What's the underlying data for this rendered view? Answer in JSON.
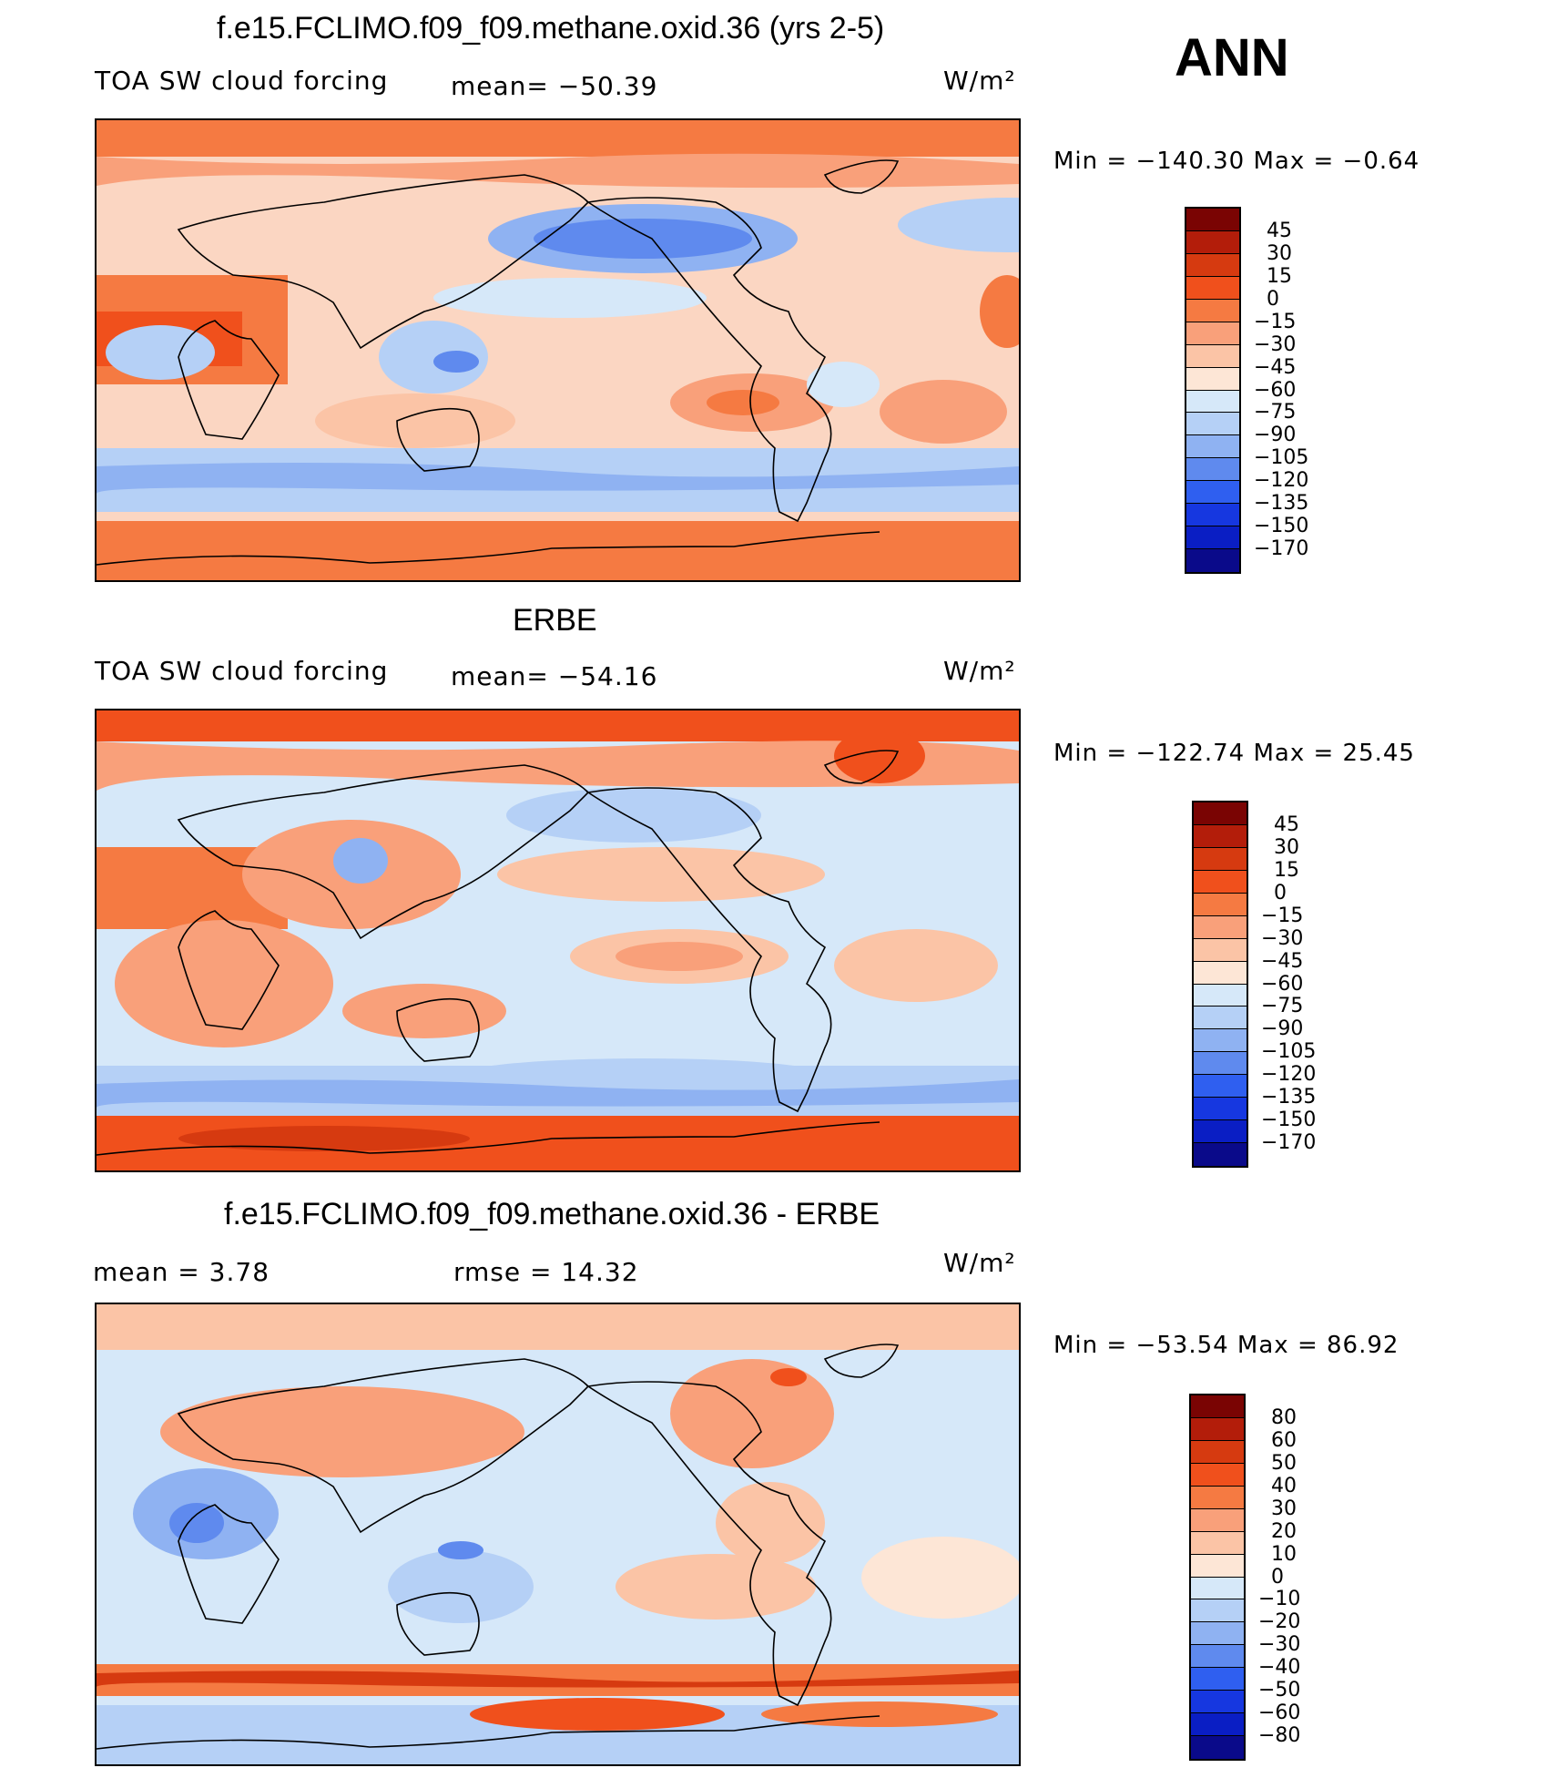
{
  "season": "ANN",
  "units": "W/m²",
  "panels": [
    {
      "id": "model",
      "title": "f.e15.FCLIMO.f09_f09.methane.oxid.36 (yrs 2-5)",
      "variable": "TOA SW cloud forcing",
      "stat1": "mean=  −50.39",
      "stat2": "",
      "minmax": "Min  =  −140.30  Max  =    −0.64",
      "levels": [
        "45",
        "30",
        "15",
        "0",
        "−15",
        "−30",
        "−45",
        "−60",
        "−75",
        "−90",
        "−105",
        "−120",
        "−135",
        "−150",
        "−170"
      ],
      "colors": [
        "#7a0403",
        "#b31d0a",
        "#d63a10",
        "#f0501c",
        "#f57a42",
        "#f9a07a",
        "#fbc4a6",
        "#fde6d6",
        "#d6e8f9",
        "#b5d0f6",
        "#8fb2f2",
        "#5f8aee",
        "#2f5ff0",
        "#1637e0",
        "#0a1ec4",
        "#0a0a8a"
      ],
      "ocean_tint": "#fbd6c2"
    },
    {
      "id": "obs",
      "title": "ERBE",
      "variable": "TOA SW cloud forcing",
      "stat1": "mean=  −54.16",
      "stat2": "",
      "minmax": "Min  =  −122.74  Max  =    25.45",
      "levels": [
        "45",
        "30",
        "15",
        "0",
        "−15",
        "−30",
        "−45",
        "−60",
        "−75",
        "−90",
        "−105",
        "−120",
        "−135",
        "−150",
        "−170"
      ],
      "colors": [
        "#7a0403",
        "#b31d0a",
        "#d63a10",
        "#f0501c",
        "#f57a42",
        "#f9a07a",
        "#fbc4a6",
        "#fde6d6",
        "#d6e8f9",
        "#b5d0f6",
        "#8fb2f2",
        "#5f8aee",
        "#2f5ff0",
        "#1637e0",
        "#0a1ec4",
        "#0a0a8a"
      ],
      "ocean_tint": "#e6ecf8"
    },
    {
      "id": "diff",
      "title": "f.e15.FCLIMO.f09_f09.methane.oxid.36 - ERBE",
      "variable": "mean  =     3.78",
      "stat1": "rmse  =    14.32",
      "stat2": "",
      "minmax": "Min  =  −53.54  Max  =    86.92",
      "levels": [
        "80",
        "60",
        "50",
        "40",
        "30",
        "20",
        "10",
        "0",
        "−10",
        "−20",
        "−30",
        "−40",
        "−50",
        "−60",
        "−80"
      ],
      "colors": [
        "#7a0403",
        "#b31d0a",
        "#d63a10",
        "#f0501c",
        "#f57a42",
        "#f9a07a",
        "#fbc4a6",
        "#fde6d6",
        "#d6e8f9",
        "#b5d0f6",
        "#8fb2f2",
        "#5f8aee",
        "#2f5ff0",
        "#1637e0",
        "#0a1ec4",
        "#0a0a8a"
      ],
      "ocean_tint": "#dfe9f8"
    }
  ]
}
